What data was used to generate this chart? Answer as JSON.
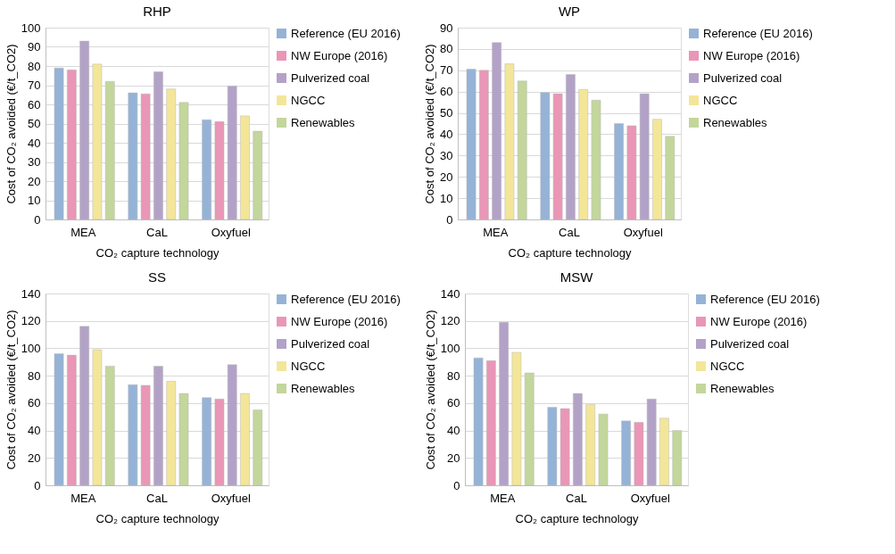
{
  "chart_data": [
    {
      "type": "bar",
      "title": "RHP",
      "xlabel": "CO₂ capture technology",
      "ylabel": "Cost of CO₂ avoided (€/t_CO2)",
      "categories": [
        "MEA",
        "CaL",
        "Oxyfuel"
      ],
      "series": [
        {
          "name": "Reference (EU 2016)",
          "color": "#95b3d7",
          "values": [
            79,
            66,
            52
          ]
        },
        {
          "name": "NW Europe (2016)",
          "color": "#e996b7",
          "values": [
            78,
            65.5,
            51
          ]
        },
        {
          "name": "Pulverized coal",
          "color": "#b3a2c7",
          "values": [
            93,
            77,
            69.5
          ]
        },
        {
          "name": "NGCC",
          "color": "#f3e699",
          "values": [
            81,
            68,
            54
          ]
        },
        {
          "name": "Renewables",
          "color": "#c3d69b",
          "values": [
            72,
            61,
            46
          ]
        }
      ],
      "ylim": [
        0,
        100
      ],
      "yticks": [
        0,
        10,
        20,
        30,
        40,
        50,
        60,
        70,
        80,
        90,
        100
      ],
      "grid": "y",
      "legend": "right"
    },
    {
      "type": "bar",
      "title": "WP",
      "xlabel": "CO₂ capture technology",
      "ylabel": "Cost of CO₂ avoided (€/t_CO2)",
      "categories": [
        "MEA",
        "CaL",
        "Oxyfuel"
      ],
      "series": [
        {
          "name": "Reference (EU 2016)",
          "color": "#95b3d7",
          "values": [
            70.5,
            59.5,
            45
          ]
        },
        {
          "name": "NW Europe (2016)",
          "color": "#e996b7",
          "values": [
            70,
            59,
            44
          ]
        },
        {
          "name": "Pulverized coal",
          "color": "#b3a2c7",
          "values": [
            83,
            68,
            59
          ]
        },
        {
          "name": "NGCC",
          "color": "#f3e699",
          "values": [
            73,
            61,
            47
          ]
        },
        {
          "name": "Renewables",
          "color": "#c3d69b",
          "values": [
            65,
            56,
            39
          ]
        }
      ],
      "ylim": [
        0,
        90
      ],
      "yticks": [
        0,
        10,
        20,
        30,
        40,
        50,
        60,
        70,
        80,
        90
      ],
      "grid": "y",
      "legend": "right"
    },
    {
      "type": "bar",
      "title": "SS",
      "xlabel": "CO₂ capture technology",
      "ylabel": "Cost of CO₂ avoided (€/t_CO2)",
      "categories": [
        "MEA",
        "CaL",
        "Oxyfuel"
      ],
      "series": [
        {
          "name": "Reference (EU 2016)",
          "color": "#95b3d7",
          "values": [
            96,
            73.5,
            64
          ]
        },
        {
          "name": "NW Europe (2016)",
          "color": "#e996b7",
          "values": [
            95,
            73,
            63
          ]
        },
        {
          "name": "Pulverized coal",
          "color": "#b3a2c7",
          "values": [
            116,
            87,
            88
          ]
        },
        {
          "name": "NGCC",
          "color": "#f3e699",
          "values": [
            99,
            76,
            67
          ]
        },
        {
          "name": "Renewables",
          "color": "#c3d69b",
          "values": [
            87,
            67,
            55
          ]
        }
      ],
      "ylim": [
        0,
        140
      ],
      "yticks": [
        0,
        20,
        40,
        60,
        80,
        100,
        120,
        140
      ],
      "grid": "y",
      "legend": "right"
    },
    {
      "type": "bar",
      "title": "MSW",
      "xlabel": "CO₂ capture technology",
      "ylabel": "Cost of CO₂ avoided (€/t_CO2)",
      "categories": [
        "MEA",
        "CaL",
        "Oxyfuel"
      ],
      "series": [
        {
          "name": "Reference (EU 2016)",
          "color": "#95b3d7",
          "values": [
            93,
            57,
            47
          ]
        },
        {
          "name": "NW Europe (2016)",
          "color": "#e996b7",
          "values": [
            91,
            56,
            46
          ]
        },
        {
          "name": "Pulverized coal",
          "color": "#b3a2c7",
          "values": [
            119,
            67,
            63
          ]
        },
        {
          "name": "NGCC",
          "color": "#f3e699",
          "values": [
            97,
            59,
            49
          ]
        },
        {
          "name": "Renewables",
          "color": "#c3d69b",
          "values": [
            82,
            52,
            40
          ]
        }
      ],
      "ylim": [
        0,
        140
      ],
      "yticks": [
        0,
        20,
        40,
        60,
        80,
        100,
        120,
        140
      ],
      "grid": "y",
      "legend": "right"
    }
  ]
}
